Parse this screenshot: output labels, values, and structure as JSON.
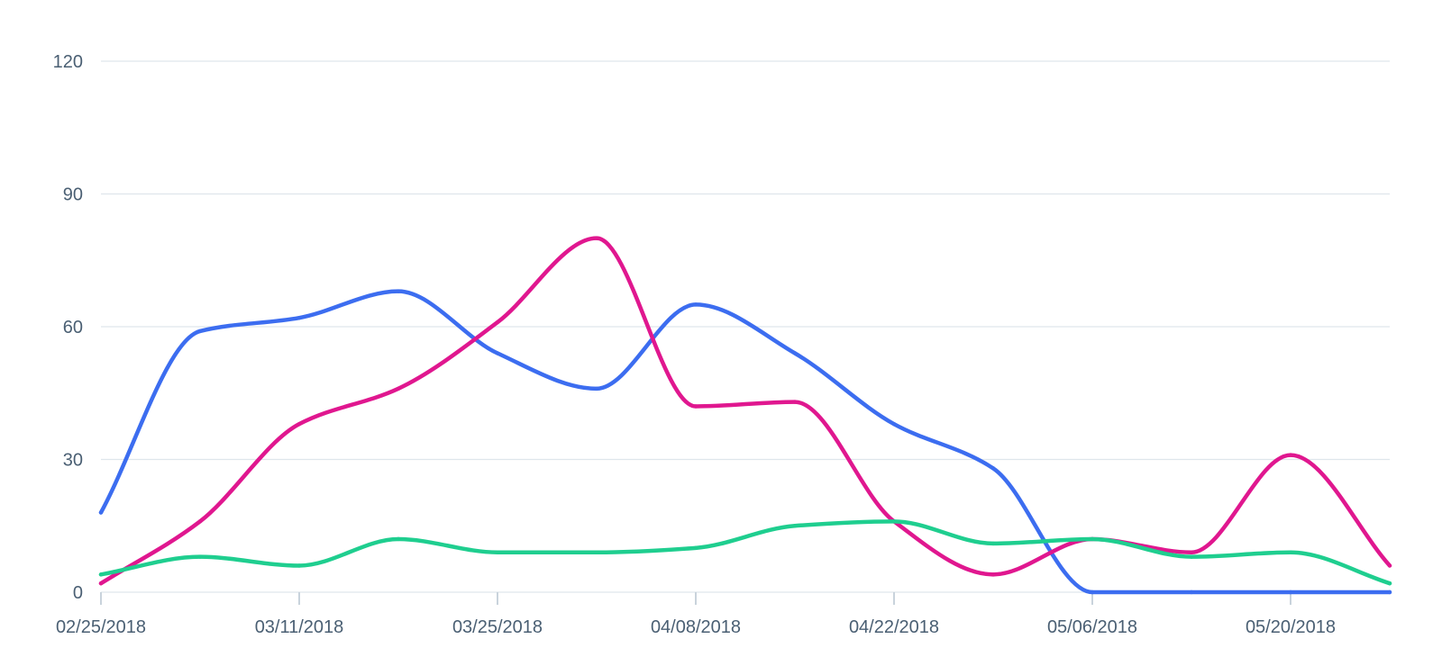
{
  "chart_data": {
    "type": "line",
    "title": "",
    "xlabel": "",
    "ylabel": "",
    "ylim": [
      0,
      120
    ],
    "yticks": [
      0,
      30,
      60,
      90,
      120
    ],
    "grid": true,
    "legend": "none",
    "x": [
      "02/25/2018",
      "03/04/2018",
      "03/11/2018",
      "03/18/2018",
      "03/25/2018",
      "04/01/2018",
      "04/08/2018",
      "04/15/2018",
      "04/22/2018",
      "04/29/2018",
      "05/06/2018",
      "05/13/2018",
      "05/20/2018",
      "05/27/2018"
    ],
    "xtick_labels": [
      "02/25/2018",
      "03/11/2018",
      "03/25/2018",
      "04/08/2018",
      "04/22/2018",
      "05/06/2018",
      "05/20/2018"
    ],
    "series": [
      {
        "color": "#3c6df0",
        "values": [
          18,
          59,
          62,
          68,
          54,
          46,
          65,
          54,
          38,
          28,
          0,
          0,
          0,
          0
        ]
      },
      {
        "color": "#e0178f",
        "values": [
          2,
          16,
          38,
          46,
          61,
          80,
          42,
          43,
          16,
          4,
          12,
          9,
          31,
          6
        ]
      },
      {
        "color": "#1fce8f",
        "values": [
          4,
          8,
          6,
          12,
          9,
          9,
          10,
          15,
          16,
          11,
          12,
          8,
          9,
          2
        ]
      }
    ]
  }
}
